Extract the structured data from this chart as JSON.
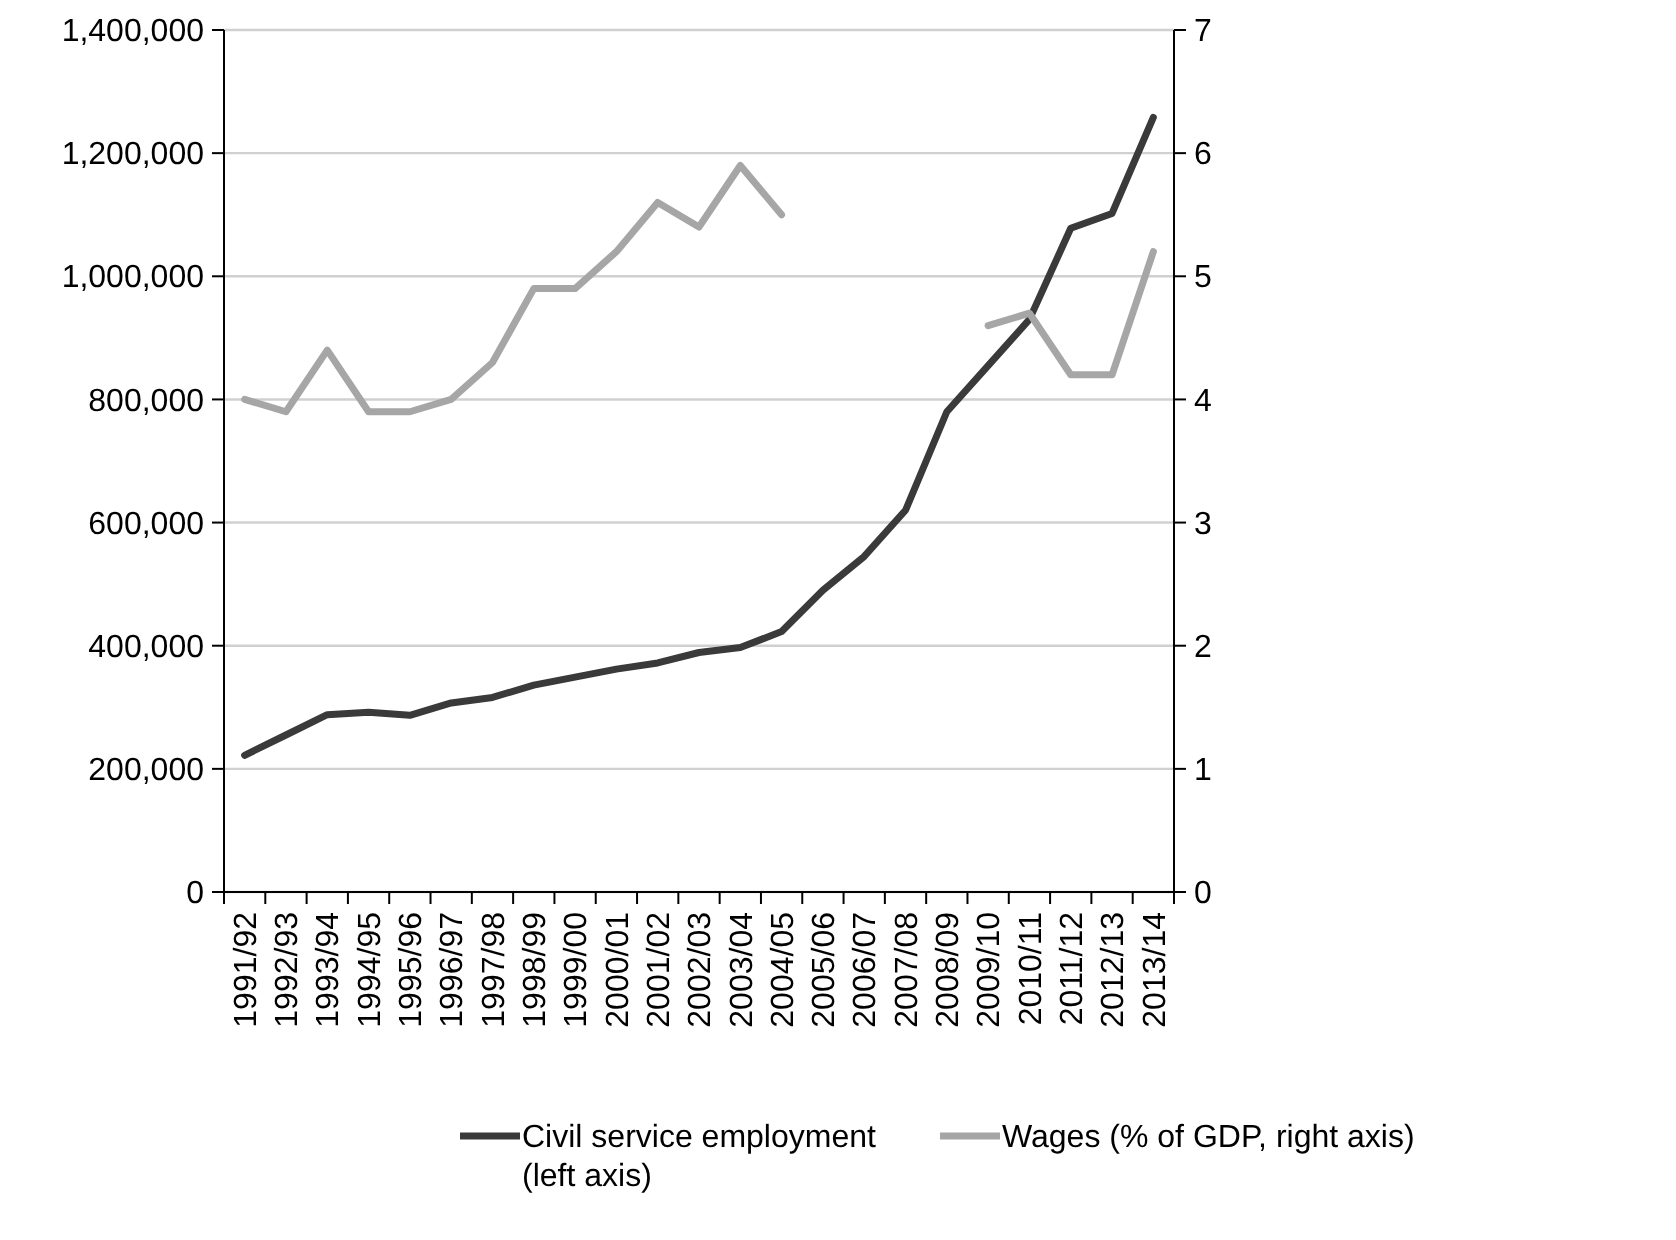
{
  "chart_data": {
    "type": "line",
    "categories": [
      "1991/92",
      "1992/93",
      "1993/94",
      "1994/95",
      "1995/96",
      "1996/97",
      "1997/98",
      "1998/99",
      "1999/00",
      "2000/01",
      "2001/02",
      "2002/03",
      "2003/04",
      "2004/05",
      "2005/06",
      "2006/07",
      "2007/08",
      "2008/09",
      "2009/10",
      "2010/11",
      "2011/12",
      "2012/13",
      "2013/14"
    ],
    "series": [
      {
        "name": "Civil service employment (left axis)",
        "color": "#3a3a3a",
        "values": [
          222000,
          255000,
          288000,
          292000,
          287000,
          307000,
          316000,
          336000,
          349000,
          362000,
          372000,
          389000,
          397000,
          423000,
          490000,
          545000,
          620000,
          780000,
          855000,
          930000,
          1078000,
          1102000,
          1258000
        ]
      },
      {
        "name": "Wages (% of GDP, right axis)",
        "color": "#a6a6a6",
        "axis": "y2",
        "values": [
          4.0,
          3.9,
          4.4,
          3.9,
          3.9,
          4.0,
          4.3,
          4.9,
          4.9,
          5.2,
          5.6,
          5.4,
          5.9,
          5.5,
          null,
          null,
          null,
          null,
          4.6,
          4.7,
          4.2,
          4.2,
          5.2
        ]
      }
    ],
    "ylim": [
      0,
      1400000
    ],
    "yticks": [
      {
        "value": 0,
        "label": "0"
      },
      {
        "value": 200000,
        "label": "200,000"
      },
      {
        "value": 400000,
        "label": "400,000"
      },
      {
        "value": 600000,
        "label": "600,000"
      },
      {
        "value": 800000,
        "label": "800,000"
      },
      {
        "value": 1000000,
        "label": "1,000,000"
      },
      {
        "value": 1200000,
        "label": "1,200,000"
      },
      {
        "value": 1400000,
        "label": "1,400,000"
      }
    ],
    "y2lim": [
      0,
      7
    ],
    "y2ticks": [
      0,
      1,
      2,
      3,
      4,
      5,
      6,
      7
    ],
    "grid": "y",
    "legend": "bottom",
    "marker": "none",
    "line_style": "solid"
  }
}
